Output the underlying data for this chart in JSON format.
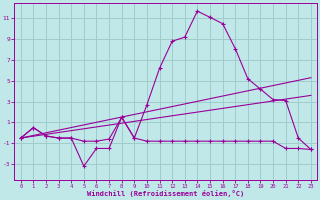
{
  "bg_color": "#c0e8e8",
  "grid_color": "#a0cccc",
  "line_color": "#990099",
  "xlim": [
    -0.5,
    23.5
  ],
  "ylim": [
    -4.5,
    12.5
  ],
  "yticks": [
    -3,
    -1,
    1,
    3,
    5,
    7,
    9,
    11
  ],
  "xticks": [
    0,
    1,
    2,
    3,
    4,
    5,
    6,
    7,
    8,
    9,
    10,
    11,
    12,
    13,
    14,
    15,
    16,
    17,
    18,
    19,
    20,
    21,
    22,
    23
  ],
  "xlabel": "Windchill (Refroidissement éolien,°C)",
  "curve1_x": [
    0,
    1,
    2,
    3,
    4,
    5,
    6,
    7,
    8,
    9,
    10,
    11,
    12,
    13,
    14,
    15,
    16,
    17,
    18,
    19,
    20,
    21,
    22,
    23
  ],
  "curve1_y": [
    -0.5,
    0.5,
    -0.3,
    -0.5,
    -0.5,
    -3.2,
    -1.5,
    -1.5,
    1.5,
    -0.5,
    2.7,
    6.2,
    8.8,
    9.2,
    11.7,
    11.1,
    10.5,
    8.1,
    5.2,
    4.2,
    3.2,
    3.1,
    -0.5,
    -1.6
  ],
  "curve2_x": [
    0,
    1,
    2,
    3,
    4,
    5,
    6,
    7,
    8,
    9,
    10,
    11,
    12,
    13,
    14,
    15,
    16,
    17,
    18,
    19,
    20,
    21,
    22,
    23
  ],
  "curve2_y": [
    -0.5,
    0.5,
    -0.3,
    -0.5,
    -0.5,
    -0.8,
    -0.8,
    -0.6,
    1.5,
    -0.5,
    -0.8,
    -0.8,
    -0.8,
    -0.8,
    -0.8,
    -0.8,
    -0.8,
    -0.8,
    -0.8,
    -0.8,
    -0.8,
    -1.5,
    -1.5,
    -1.6
  ],
  "trendline1_x": [
    0,
    23
  ],
  "trendline1_y": [
    -0.5,
    5.3
  ],
  "trendline2_x": [
    0,
    23
  ],
  "trendline2_y": [
    -0.5,
    3.6
  ]
}
